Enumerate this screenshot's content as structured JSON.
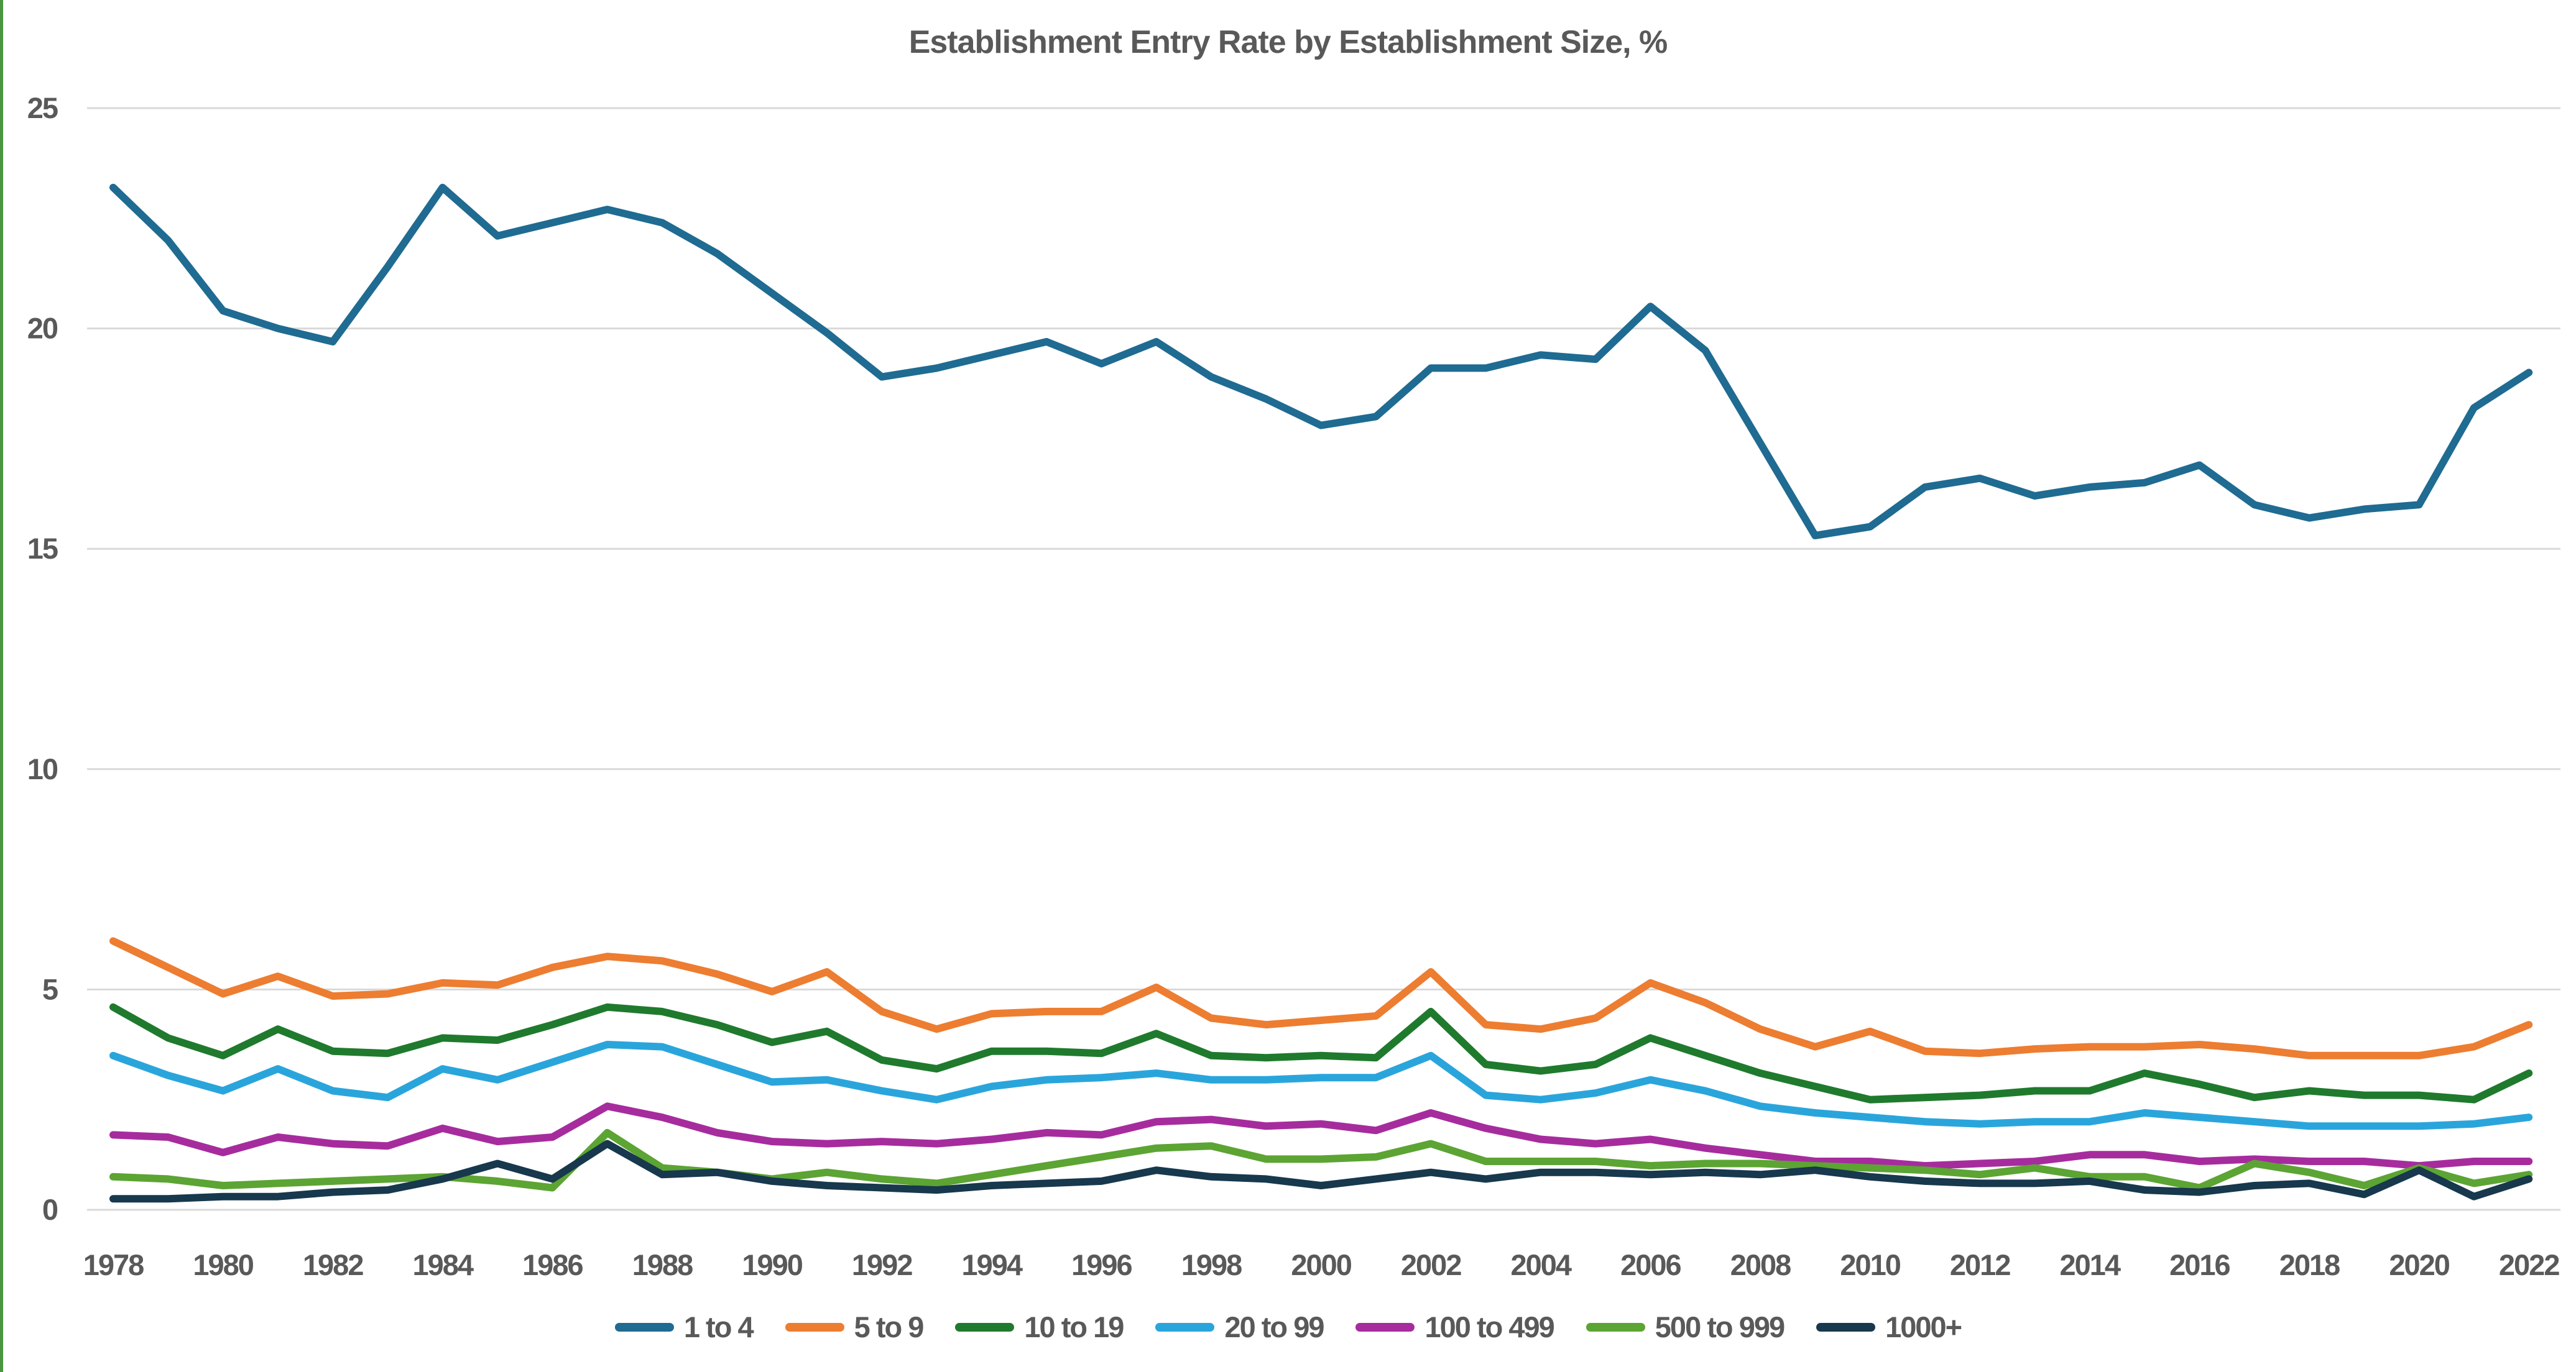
{
  "title": "Establishment Entry Rate by Establishment Size, %",
  "chart_data": {
    "type": "line",
    "title": "Establishment Entry Rate by Establishment Size, %",
    "xlabel": "",
    "ylabel": "",
    "ylim": [
      0,
      25
    ],
    "y_ticks": [
      0,
      5,
      10,
      15,
      20,
      25
    ],
    "grid": "horizontal",
    "gridline_color": "#d9d9d9",
    "text_color": "#595959",
    "legend_position": "bottom",
    "x": [
      1978,
      1979,
      1980,
      1981,
      1982,
      1983,
      1984,
      1985,
      1986,
      1987,
      1988,
      1989,
      1990,
      1991,
      1992,
      1993,
      1994,
      1995,
      1996,
      1997,
      1998,
      1999,
      2000,
      2001,
      2002,
      2003,
      2004,
      2005,
      2006,
      2007,
      2008,
      2009,
      2010,
      2011,
      2012,
      2013,
      2014,
      2015,
      2016,
      2017,
      2018,
      2019,
      2020,
      2021,
      2022
    ],
    "x_tick_labels": [
      "1978",
      "1980",
      "1982",
      "1984",
      "1986",
      "1988",
      "1990",
      "1992",
      "1994",
      "1996",
      "1998",
      "2000",
      "2002",
      "2004",
      "2006",
      "2008",
      "2010",
      "2012",
      "2014",
      "2016",
      "2018",
      "2020",
      "2022"
    ],
    "series": [
      {
        "name": "1 to 4",
        "color": "#1f6b92",
        "values": [
          23.2,
          22.0,
          20.4,
          20.0,
          19.7,
          21.4,
          23.2,
          22.1,
          22.4,
          22.7,
          22.4,
          21.7,
          20.8,
          19.9,
          18.9,
          19.1,
          19.4,
          19.7,
          19.2,
          19.7,
          18.9,
          18.4,
          17.8,
          18.0,
          19.1,
          19.1,
          19.4,
          19.3,
          20.5,
          19.5,
          17.4,
          15.3,
          15.5,
          16.4,
          16.6,
          16.2,
          16.4,
          16.5,
          16.9,
          16.0,
          15.7,
          15.9,
          16.0,
          18.2,
          19.0
        ]
      },
      {
        "name": "5 to 9",
        "color": "#ed7d31",
        "values": [
          6.1,
          5.5,
          4.9,
          5.3,
          4.85,
          4.9,
          5.15,
          5.1,
          5.5,
          5.75,
          5.65,
          5.35,
          4.95,
          5.4,
          4.5,
          4.1,
          4.45,
          4.5,
          4.5,
          5.05,
          4.35,
          4.2,
          4.3,
          4.4,
          5.4,
          4.2,
          4.1,
          4.35,
          5.15,
          4.7,
          4.1,
          3.7,
          4.05,
          3.6,
          3.55,
          3.65,
          3.7,
          3.7,
          3.75,
          3.65,
          3.5,
          3.5,
          3.5,
          3.7,
          4.2
        ]
      },
      {
        "name": "10 to 19",
        "color": "#1f7a2d",
        "values": [
          4.6,
          3.9,
          3.5,
          4.1,
          3.6,
          3.55,
          3.9,
          3.85,
          4.2,
          4.6,
          4.5,
          4.2,
          3.8,
          4.05,
          3.4,
          3.2,
          3.6,
          3.6,
          3.55,
          4.0,
          3.5,
          3.45,
          3.5,
          3.45,
          4.5,
          3.3,
          3.15,
          3.3,
          3.9,
          3.5,
          3.1,
          2.8,
          2.5,
          2.55,
          2.6,
          2.7,
          2.7,
          3.1,
          2.85,
          2.55,
          2.7,
          2.6,
          2.6,
          2.5,
          3.1
        ]
      },
      {
        "name": "20 to 99",
        "color": "#2aa5dc",
        "values": [
          3.5,
          3.05,
          2.7,
          3.2,
          2.7,
          2.55,
          3.2,
          2.95,
          3.35,
          3.75,
          3.7,
          3.3,
          2.9,
          2.95,
          2.7,
          2.5,
          2.8,
          2.95,
          3.0,
          3.1,
          2.95,
          2.95,
          3.0,
          3.0,
          3.5,
          2.6,
          2.5,
          2.65,
          2.95,
          2.7,
          2.35,
          2.2,
          2.1,
          2.0,
          1.95,
          2.0,
          2.0,
          2.2,
          2.1,
          2.0,
          1.9,
          1.9,
          1.9,
          1.95,
          2.1
        ]
      },
      {
        "name": "100 to 499",
        "color": "#a62c9e",
        "values": [
          1.7,
          1.65,
          1.3,
          1.65,
          1.5,
          1.45,
          1.85,
          1.55,
          1.65,
          2.35,
          2.1,
          1.75,
          1.55,
          1.5,
          1.55,
          1.5,
          1.6,
          1.75,
          1.7,
          2.0,
          2.05,
          1.9,
          1.95,
          1.8,
          2.2,
          1.85,
          1.6,
          1.5,
          1.6,
          1.4,
          1.25,
          1.1,
          1.1,
          1.0,
          1.05,
          1.1,
          1.25,
          1.25,
          1.1,
          1.15,
          1.1,
          1.1,
          1.0,
          1.1,
          1.1
        ]
      },
      {
        "name": "500 to 999",
        "color": "#5ca433",
        "values": [
          0.75,
          0.7,
          0.55,
          0.6,
          0.65,
          0.7,
          0.75,
          0.65,
          0.5,
          1.75,
          0.95,
          0.85,
          0.7,
          0.85,
          0.7,
          0.6,
          0.8,
          1.0,
          1.2,
          1.4,
          1.45,
          1.15,
          1.15,
          1.2,
          1.5,
          1.1,
          1.1,
          1.1,
          1.0,
          1.05,
          1.05,
          1.0,
          0.95,
          0.9,
          0.8,
          0.95,
          0.75,
          0.75,
          0.5,
          1.05,
          0.85,
          0.55,
          0.95,
          0.6,
          0.8
        ]
      },
      {
        "name": "1000+",
        "color": "#17384d",
        "values": [
          0.25,
          0.25,
          0.3,
          0.3,
          0.4,
          0.45,
          0.7,
          1.05,
          0.7,
          1.5,
          0.8,
          0.85,
          0.65,
          0.55,
          0.5,
          0.45,
          0.55,
          0.6,
          0.65,
          0.9,
          0.75,
          0.7,
          0.55,
          0.7,
          0.85,
          0.7,
          0.85,
          0.85,
          0.8,
          0.85,
          0.8,
          0.9,
          0.75,
          0.65,
          0.6,
          0.6,
          0.65,
          0.45,
          0.4,
          0.55,
          0.6,
          0.35,
          0.9,
          0.3,
          0.7
        ]
      }
    ]
  },
  "accent_colors": {
    "left_strip": "#4a9540",
    "gridline": "#d9d9d9",
    "text": "#595959"
  }
}
